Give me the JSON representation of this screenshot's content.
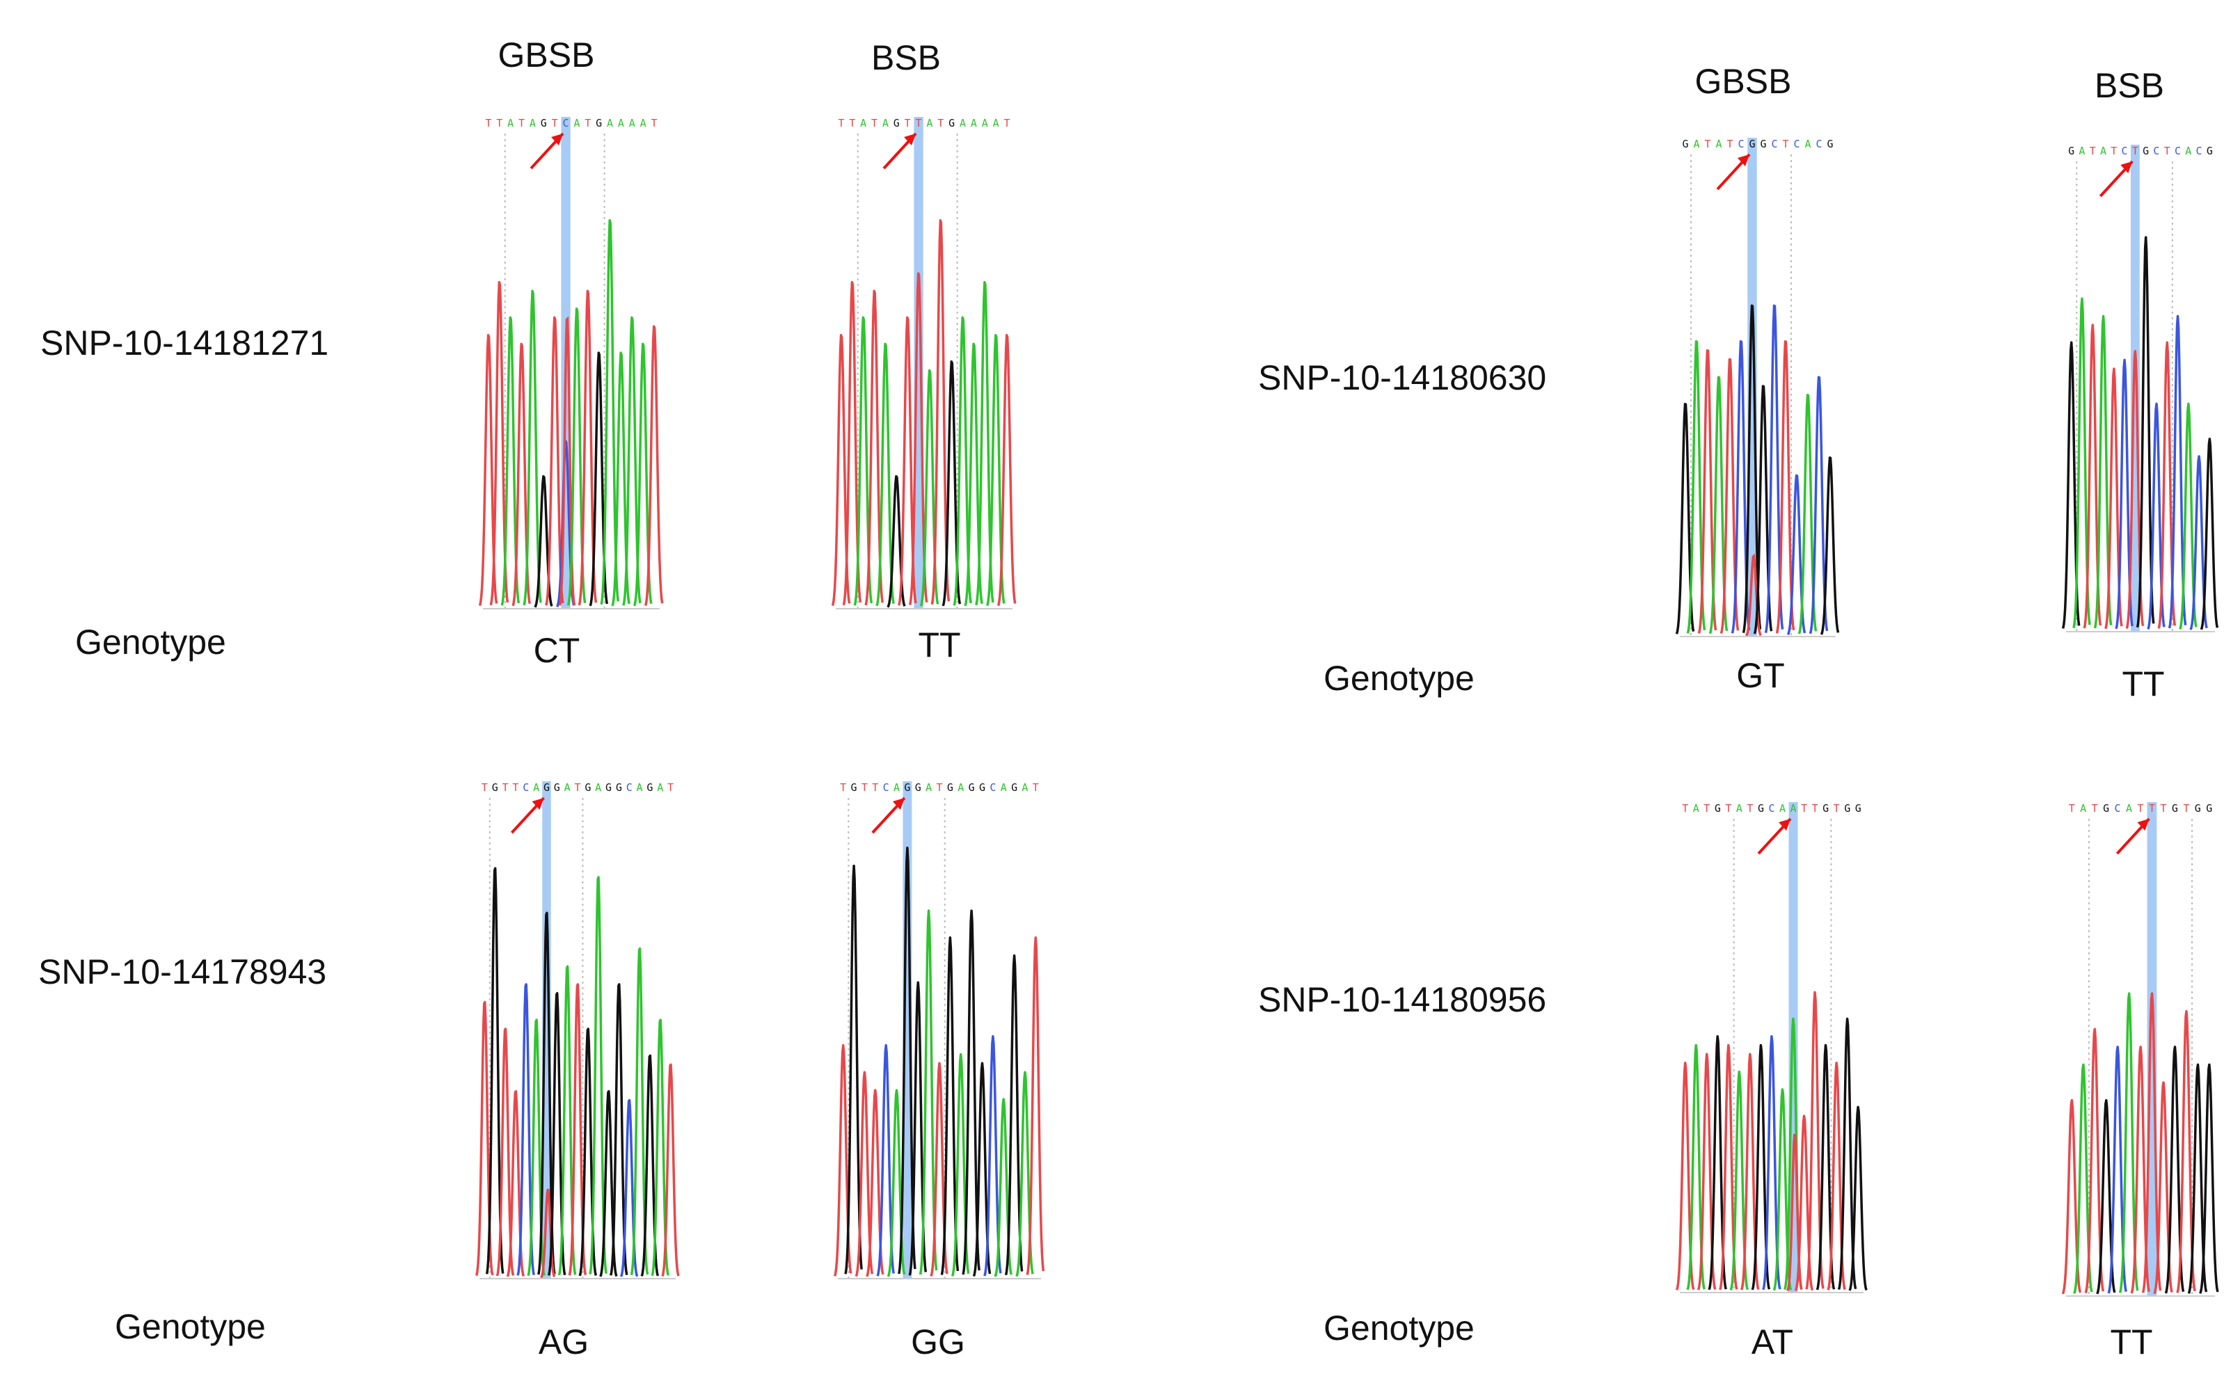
{
  "colors": {
    "A": "#2ec42e",
    "C": "#3a55e0",
    "G": "#111111",
    "T": "#e8474a",
    "highlight": "#a7cbf5",
    "arrow": "#ee1111",
    "guide": "#bbbbbb"
  },
  "genotype_label": "Genotype",
  "panels": [
    {
      "snp": "SNP-10-14181271",
      "samples": [
        {
          "header": "GBSB",
          "sequence": "TTATAGTCATGAAAAT",
          "site_index": 7,
          "genotype": "CT",
          "peaks": [
            0.62,
            0.74,
            0.66,
            0.6,
            0.72,
            0.3,
            0.66,
            0.38,
            0.68,
            0.72,
            0.58,
            0.88,
            0.58,
            0.66,
            0.6,
            0.64
          ],
          "secondary": [
            0,
            0,
            0,
            0,
            0,
            0,
            0,
            0.66,
            0,
            0,
            0,
            0,
            0,
            0,
            0,
            0
          ]
        },
        {
          "header": "BSB",
          "sequence": "TTATAGTTATGAAAAT",
          "site_index": 7,
          "genotype": "TT",
          "peaks": [
            0.62,
            0.74,
            0.66,
            0.72,
            0.6,
            0.3,
            0.66,
            0.76,
            0.54,
            0.88,
            0.56,
            0.66,
            0.6,
            0.74,
            0.62,
            0.62
          ],
          "secondary": []
        }
      ]
    },
    {
      "snp": "SNP-10-14180630",
      "samples": [
        {
          "header": "GBSB",
          "sequence": "GATATCGGCTCACG",
          "site_index": 6,
          "genotype": "GT",
          "peaks": [
            0.52,
            0.66,
            0.64,
            0.58,
            0.62,
            0.66,
            0.74,
            0.56,
            0.74,
            0.66,
            0.36,
            0.54,
            0.58,
            0.4
          ],
          "secondary": [
            0,
            0,
            0,
            0,
            0,
            0,
            0.18,
            0,
            0,
            0,
            0,
            0,
            0,
            0
          ]
        },
        {
          "header": "BSB",
          "sequence": "GATATCTGCTCACG",
          "site_index": 6,
          "genotype": "TT",
          "peaks": [
            0.66,
            0.76,
            0.7,
            0.72,
            0.6,
            0.62,
            0.64,
            0.9,
            0.52,
            0.66,
            0.72,
            0.52,
            0.4,
            0.44
          ],
          "secondary": []
        }
      ]
    },
    {
      "snp": "SNP-10-14178943",
      "samples": [
        {
          "header": "GBSB",
          "sequence": "TGTTCAGGATGAGGCAGAT",
          "site_index": 6,
          "genotype": "AG",
          "peaks": [
            0.62,
            0.92,
            0.56,
            0.42,
            0.66,
            0.58,
            0.82,
            0.64,
            0.7,
            0.66,
            0.56,
            0.9,
            0.42,
            0.66,
            0.4,
            0.74,
            0.5,
            0.58,
            0.48
          ],
          "secondary": [
            0,
            0,
            0,
            0,
            0,
            0,
            0.2,
            0,
            0,
            0,
            0,
            0,
            0,
            0,
            0,
            0,
            0,
            0,
            0
          ]
        },
        {
          "header": "BSB",
          "sequence": "TGTTCAGGATGAGGCAGAT",
          "site_index": 6,
          "genotype": "GG",
          "peaks": [
            0.52,
            0.92,
            0.46,
            0.42,
            0.52,
            0.42,
            0.96,
            0.66,
            0.82,
            0.48,
            0.76,
            0.5,
            0.82,
            0.48,
            0.54,
            0.4,
            0.72,
            0.46,
            0.76
          ],
          "secondary": []
        }
      ]
    },
    {
      "snp": "SNP-10-14180956",
      "samples": [
        {
          "header": "",
          "sequence": "TATGTATGCAATTGTGG",
          "site_index": 10,
          "genotype": "AT",
          "peaks": [
            0.52,
            0.56,
            0.54,
            0.58,
            0.56,
            0.5,
            0.54,
            0.56,
            0.58,
            0.46,
            0.62,
            0.4,
            0.68,
            0.56,
            0.52,
            0.62,
            0.42
          ],
          "secondary": [
            0,
            0,
            0,
            0,
            0,
            0,
            0,
            0,
            0,
            0,
            0.36,
            0,
            0,
            0,
            0,
            0,
            0
          ]
        },
        {
          "header": "",
          "sequence": "TATGCATTTGTGG",
          "site_index": 7,
          "genotype": "TT",
          "peaks": [
            0.44,
            0.52,
            0.6,
            0.44,
            0.56,
            0.68,
            0.56,
            0.68,
            0.48,
            0.56,
            0.64,
            0.52,
            0.52
          ],
          "secondary": []
        }
      ]
    }
  ]
}
